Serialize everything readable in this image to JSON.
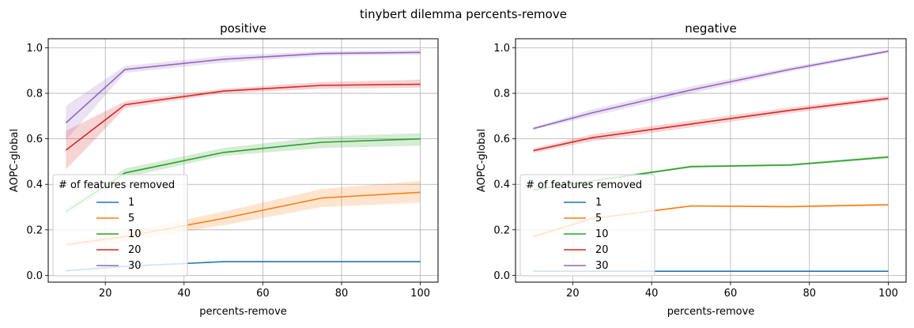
{
  "suptitle": "tinybert dilemma percents-remove",
  "colors": {
    "1": "#1f77b4",
    "5": "#ff7f0e",
    "10": "#2ca02c",
    "20": "#d62728",
    "30": "#9467bd"
  },
  "chart_data": [
    {
      "type": "line",
      "title": "positive",
      "xlabel": "percents-remove",
      "ylabel": "AOPC-global",
      "xlim": [
        5.5,
        104.5
      ],
      "ylim": [
        -0.03,
        1.04
      ],
      "xticks": [
        20,
        40,
        60,
        80,
        100
      ],
      "yticks": [
        0.0,
        0.2,
        0.4,
        0.6,
        0.8,
        1.0
      ],
      "ytick_labels": [
        "0.0",
        "0.2",
        "0.4",
        "0.6",
        "0.8",
        "1.0"
      ],
      "grid": true,
      "legend": {
        "title": "# of features removed",
        "placement": "lower-left",
        "entries": [
          "1",
          "5",
          "10",
          "20",
          "30"
        ]
      },
      "x": [
        10,
        25,
        50,
        75,
        100
      ],
      "series": [
        {
          "name": "1",
          "values": [
            0.02,
            0.04,
            0.06,
            0.06,
            0.06
          ],
          "lower": [
            0.015,
            0.035,
            0.058,
            0.058,
            0.058
          ],
          "upper": [
            0.025,
            0.045,
            0.062,
            0.062,
            0.062
          ]
        },
        {
          "name": "5",
          "values": [
            0.135,
            0.17,
            0.25,
            0.34,
            0.365
          ],
          "lower": [
            0.125,
            0.15,
            0.22,
            0.3,
            0.32
          ],
          "upper": [
            0.145,
            0.19,
            0.28,
            0.38,
            0.415
          ]
        },
        {
          "name": "10",
          "values": [
            0.28,
            0.45,
            0.54,
            0.585,
            0.6
          ],
          "lower": [
            0.265,
            0.43,
            0.525,
            0.56,
            0.57
          ],
          "upper": [
            0.295,
            0.47,
            0.56,
            0.61,
            0.625
          ]
        },
        {
          "name": "20",
          "values": [
            0.55,
            0.75,
            0.81,
            0.835,
            0.84
          ],
          "lower": [
            0.465,
            0.735,
            0.8,
            0.82,
            0.825
          ],
          "upper": [
            0.635,
            0.765,
            0.82,
            0.85,
            0.86
          ]
        },
        {
          "name": "30",
          "values": [
            0.67,
            0.905,
            0.95,
            0.975,
            0.98
          ],
          "lower": [
            0.595,
            0.89,
            0.935,
            0.965,
            0.97
          ],
          "upper": [
            0.745,
            0.92,
            0.965,
            0.985,
            0.99
          ]
        }
      ]
    },
    {
      "type": "line",
      "title": "negative",
      "xlabel": "percents-remove",
      "ylabel": "AOPC-global",
      "xlim": [
        5.5,
        104.5
      ],
      "ylim": [
        -0.03,
        1.04
      ],
      "xticks": [
        20,
        40,
        60,
        80,
        100
      ],
      "yticks": [
        0.0,
        0.2,
        0.4,
        0.6,
        0.8,
        1.0
      ],
      "ytick_labels": [
        "0.0",
        "0.2",
        "0.4",
        "0.6",
        "0.8",
        "1.0"
      ],
      "grid": true,
      "legend": {
        "title": "# of features removed",
        "placement": "lower-left",
        "entries": [
          "1",
          "5",
          "10",
          "20",
          "30"
        ]
      },
      "x": [
        10,
        25,
        50,
        75,
        100
      ],
      "series": [
        {
          "name": "1",
          "values": [
            0.018,
            0.018,
            0.018,
            0.018,
            0.018
          ],
          "lower": [
            0.016,
            0.016,
            0.016,
            0.016,
            0.016
          ],
          "upper": [
            0.02,
            0.02,
            0.02,
            0.02,
            0.02
          ]
        },
        {
          "name": "5",
          "values": [
            0.17,
            0.25,
            0.305,
            0.302,
            0.31
          ],
          "lower": [
            0.16,
            0.245,
            0.302,
            0.298,
            0.305
          ],
          "upper": [
            0.18,
            0.255,
            0.308,
            0.306,
            0.315
          ]
        },
        {
          "name": "10",
          "values": [
            0.375,
            0.415,
            0.478,
            0.485,
            0.52
          ],
          "lower": [
            0.37,
            0.41,
            0.473,
            0.48,
            0.513
          ],
          "upper": [
            0.38,
            0.42,
            0.483,
            0.49,
            0.527
          ]
        },
        {
          "name": "20",
          "values": [
            0.548,
            0.605,
            0.665,
            0.725,
            0.778
          ],
          "lower": [
            0.538,
            0.59,
            0.65,
            0.712,
            0.768
          ],
          "upper": [
            0.558,
            0.62,
            0.68,
            0.738,
            0.788
          ]
        },
        {
          "name": "30",
          "values": [
            0.645,
            0.715,
            0.815,
            0.905,
            0.985
          ],
          "lower": [
            0.64,
            0.7,
            0.8,
            0.895,
            0.978
          ],
          "upper": [
            0.65,
            0.73,
            0.83,
            0.915,
            0.992
          ]
        }
      ]
    }
  ]
}
